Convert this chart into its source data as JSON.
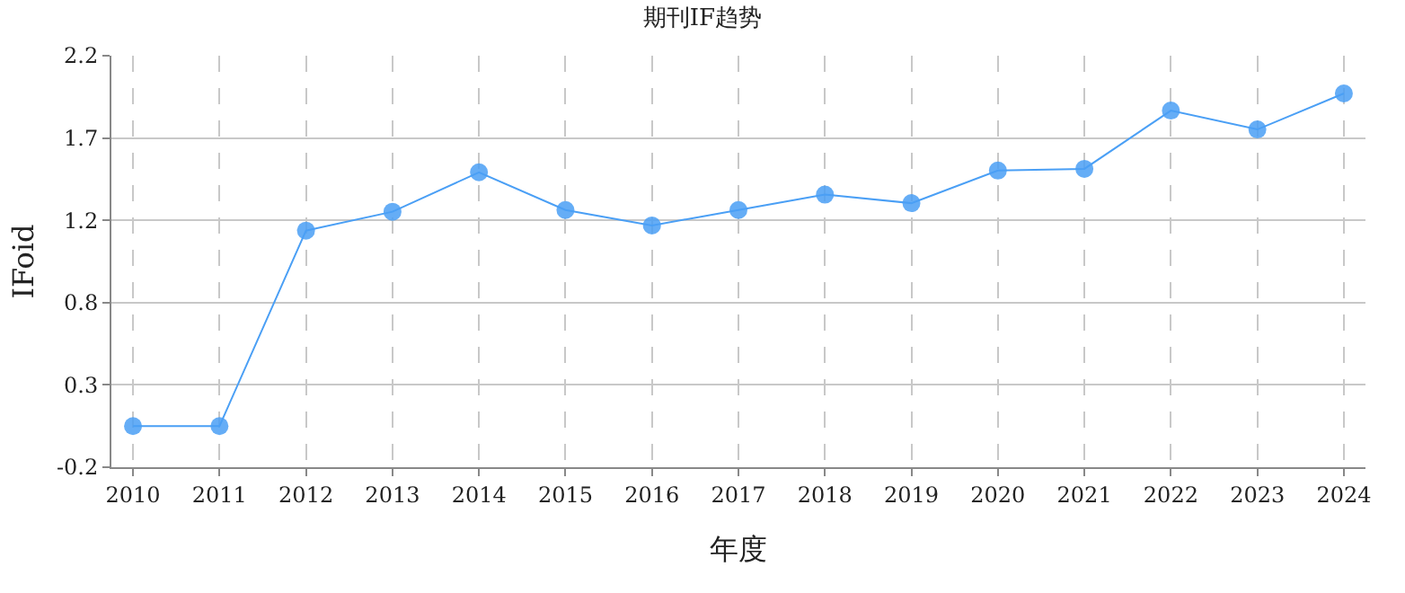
{
  "chart_data": {
    "type": "line",
    "title": "期刊IF趋势",
    "xlabel": "年度",
    "ylabel": "IFoid",
    "categories": [
      "2010",
      "2011",
      "2012",
      "2013",
      "2014",
      "2015",
      "2016",
      "2017",
      "2018",
      "2019",
      "2020",
      "2021",
      "2022",
      "2023",
      "2024"
    ],
    "series": [
      {
        "color": "#4a9ff5",
        "values": [
          0.04,
          0.04,
          1.18,
          1.29,
          1.52,
          1.3,
          1.21,
          1.3,
          1.39,
          1.34,
          1.53,
          1.54,
          1.88,
          1.77,
          1.98
        ]
      }
    ],
    "ylim": [
      -0.2,
      2.2
    ],
    "yticks": [
      {
        "value": -0.2,
        "label": "-0.2"
      },
      {
        "value": 0.28,
        "label": "0.3"
      },
      {
        "value": 0.76,
        "label": "0.8"
      },
      {
        "value": 1.24,
        "label": "1.2"
      },
      {
        "value": 1.72,
        "label": "1.7"
      },
      {
        "value": 2.2,
        "label": "2.2"
      }
    ],
    "grid": true,
    "marker": "circle",
    "line_style": "solid"
  }
}
